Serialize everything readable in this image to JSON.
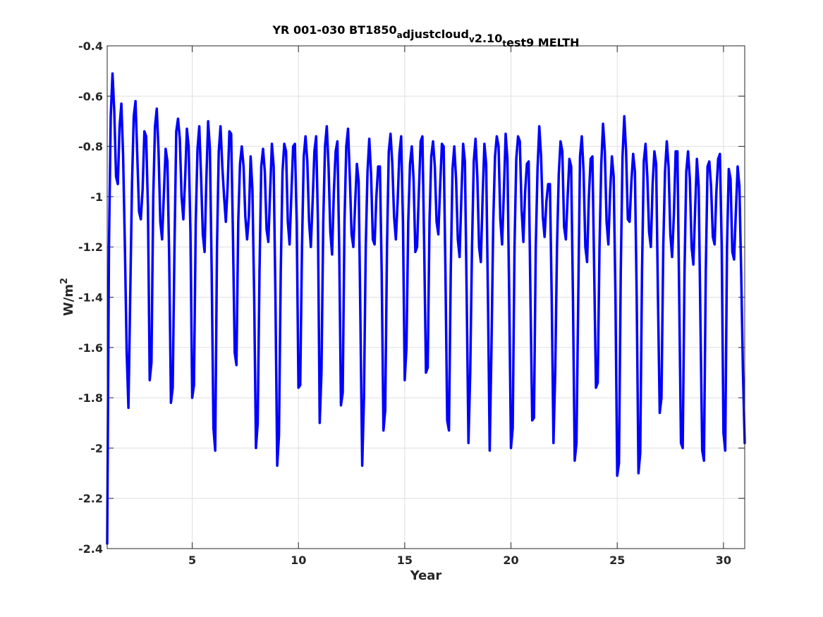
{
  "chart_data": {
    "type": "line",
    "title": {
      "parts": [
        {
          "text": "YR 001-030 BT1850",
          "sub": false
        },
        {
          "text": "a",
          "sub": true
        },
        {
          "text": "djustcloud",
          "sub": false
        },
        {
          "text": "v",
          "sub": true
        },
        {
          "text": "2.10",
          "sub": false
        },
        {
          "text": "t",
          "sub": true
        },
        {
          "text": "est9 MELTH",
          "sub": false
        }
      ]
    },
    "xlabel": "Year",
    "ylabel": {
      "base": "W/m",
      "sup": "2"
    },
    "xlim": [
      1,
      31
    ],
    "ylim": [
      -2.4,
      -0.4
    ],
    "xticks": [
      5,
      10,
      15,
      20,
      25,
      30
    ],
    "yticks": [
      -2.4,
      -2.2,
      -2,
      -1.8,
      -1.6,
      -1.4,
      -1.2,
      -1,
      -0.8,
      -0.6,
      -0.4
    ],
    "ytick_labels": [
      "-2.4",
      "-2.2",
      "-2",
      "-1.8",
      "-1.6",
      "-1.4",
      "-1.2",
      "-1",
      "-0.8",
      "-0.6",
      "-0.4"
    ],
    "xtick_labels": [
      "5",
      "10",
      "15",
      "20",
      "25",
      "30"
    ],
    "grid": true,
    "color": "#0000ff",
    "series": [
      {
        "x": [
          1.0,
          1.083,
          1.167,
          1.25,
          1.333,
          1.417,
          1.5,
          1.583,
          1.667,
          1.75,
          1.833,
          1.917,
          2.0,
          2.083,
          2.167,
          2.25,
          2.333,
          2.417,
          2.5,
          2.583,
          2.667,
          2.75,
          2.833,
          2.917,
          3.0,
          3.083,
          3.167,
          3.25,
          3.333,
          3.417,
          3.5,
          3.583,
          3.667,
          3.75,
          3.833,
          3.917,
          4.0,
          4.083,
          4.167,
          4.25,
          4.333,
          4.417,
          4.5,
          4.583,
          4.667,
          4.75,
          4.833,
          4.917,
          5.0,
          5.083,
          5.167,
          5.25,
          5.333,
          5.417,
          5.5,
          5.583,
          5.667,
          5.75,
          5.833,
          5.917,
          6.0,
          6.083,
          6.167,
          6.25,
          6.333,
          6.417,
          6.5,
          6.583,
          6.667,
          6.75,
          6.833,
          6.917,
          7.0,
          7.083,
          7.167,
          7.25,
          7.333,
          7.417,
          7.5,
          7.583,
          7.667,
          7.75,
          7.833,
          7.917,
          8.0,
          8.083,
          8.167,
          8.25,
          8.333,
          8.417,
          8.5,
          8.583,
          8.667,
          8.75,
          8.833,
          8.917,
          9.0,
          9.083,
          9.167,
          9.25,
          9.333,
          9.417,
          9.5,
          9.583,
          9.667,
          9.75,
          9.833,
          9.917,
          10.0,
          10.083,
          10.167,
          10.25,
          10.333,
          10.417,
          10.5,
          10.583,
          10.667,
          10.75,
          10.833,
          10.917,
          11.0,
          11.083,
          11.167,
          11.25,
          11.333,
          11.417,
          11.5,
          11.583,
          11.667,
          11.75,
          11.833,
          11.917,
          12.0,
          12.083,
          12.167,
          12.25,
          12.333,
          12.417,
          12.5,
          12.583,
          12.667,
          12.75,
          12.833,
          12.917,
          13.0,
          13.083,
          13.167,
          13.25,
          13.333,
          13.417,
          13.5,
          13.583,
          13.667,
          13.75,
          13.833,
          13.917,
          14.0,
          14.083,
          14.167,
          14.25,
          14.333,
          14.417,
          14.5,
          14.583,
          14.667,
          14.75,
          14.833,
          14.917,
          15.0,
          15.083,
          15.167,
          15.25,
          15.333,
          15.417,
          15.5,
          15.583,
          15.667,
          15.75,
          15.833,
          15.917,
          16.0,
          16.083,
          16.167,
          16.25,
          16.333,
          16.417,
          16.5,
          16.583,
          16.667,
          16.75,
          16.833,
          16.917,
          17.0,
          17.083,
          17.167,
          17.25,
          17.333,
          17.417,
          17.5,
          17.583,
          17.667,
          17.75,
          17.833,
          17.917,
          18.0,
          18.083,
          18.167,
          18.25,
          18.333,
          18.417,
          18.5,
          18.583,
          18.667,
          18.75,
          18.833,
          18.917,
          19.0,
          19.083,
          19.167,
          19.25,
          19.333,
          19.417,
          19.5,
          19.583,
          19.667,
          19.75,
          19.833,
          19.917,
          20.0,
          20.083,
          20.167,
          20.25,
          20.333,
          20.417,
          20.5,
          20.583,
          20.667,
          20.75,
          20.833,
          20.917,
          21.0,
          21.083,
          21.167,
          21.25,
          21.333,
          21.417,
          21.5,
          21.583,
          21.667,
          21.75,
          21.833,
          21.917,
          22.0,
          22.083,
          22.167,
          22.25,
          22.333,
          22.417,
          22.5,
          22.583,
          22.667,
          22.75,
          22.833,
          22.917,
          23.0,
          23.083,
          23.167,
          23.25,
          23.333,
          23.417,
          23.5,
          23.583,
          23.667,
          23.75,
          23.833,
          23.917,
          24.0,
          24.083,
          24.167,
          24.25,
          24.333,
          24.417,
          24.5,
          24.583,
          24.667,
          24.75,
          24.833,
          24.917,
          25.0,
          25.083,
          25.167,
          25.25,
          25.333,
          25.417,
          25.5,
          25.583,
          25.667,
          25.75,
          25.833,
          25.917,
          26.0,
          26.083,
          26.167,
          26.25,
          26.333,
          26.417,
          26.5,
          26.583,
          26.667,
          26.75,
          26.833,
          26.917,
          27.0,
          27.083,
          27.167,
          27.25,
          27.333,
          27.417,
          27.5,
          27.583,
          27.667,
          27.75,
          27.833,
          27.917,
          28.0,
          28.083,
          28.167,
          28.25,
          28.333,
          28.417,
          28.5,
          28.583,
          28.667,
          28.75,
          28.833,
          28.917,
          29.0,
          29.083,
          29.167,
          29.25,
          29.333,
          29.417,
          29.5,
          29.583,
          29.667,
          29.75,
          29.833,
          29.917,
          30.0,
          30.083,
          30.167,
          30.25,
          30.333,
          30.417,
          30.5,
          30.583,
          30.667,
          30.75,
          30.833,
          30.917,
          31.0
        ],
        "y": [
          -2.38,
          -1.2,
          -0.68,
          -0.51,
          -0.66,
          -0.92,
          -0.95,
          -0.72,
          -0.63,
          -0.84,
          -1.2,
          -1.62,
          -1.84,
          -1.4,
          -0.95,
          -0.68,
          -0.62,
          -0.84,
          -1.06,
          -1.09,
          -0.97,
          -0.74,
          -0.76,
          -1.04,
          -1.73,
          -1.66,
          -1.0,
          -0.72,
          -0.65,
          -0.82,
          -1.1,
          -1.17,
          -0.99,
          -0.81,
          -0.86,
          -1.24,
          -1.82,
          -1.76,
          -1.2,
          -0.74,
          -0.69,
          -0.77,
          -1.0,
          -1.09,
          -0.93,
          -0.73,
          -0.8,
          -1.14,
          -1.8,
          -1.75,
          -1.1,
          -0.81,
          -0.72,
          -0.92,
          -1.15,
          -1.22,
          -0.93,
          -0.7,
          -0.81,
          -1.3,
          -1.92,
          -2.01,
          -1.2,
          -0.82,
          -0.72,
          -0.88,
          -1.0,
          -1.1,
          -0.96,
          -0.74,
          -0.75,
          -1.15,
          -1.62,
          -1.67,
          -1.1,
          -0.87,
          -0.8,
          -0.88,
          -1.08,
          -1.17,
          -1.08,
          -0.84,
          -0.97,
          -1.4,
          -2.0,
          -1.9,
          -1.3,
          -0.88,
          -0.81,
          -0.9,
          -1.13,
          -1.18,
          -0.98,
          -0.79,
          -0.88,
          -1.4,
          -2.07,
          -1.95,
          -1.3,
          -0.9,
          -0.79,
          -0.82,
          -1.1,
          -1.19,
          -0.99,
          -0.8,
          -0.79,
          -1.1,
          -1.76,
          -1.75,
          -1.2,
          -0.84,
          -0.76,
          -0.86,
          -1.1,
          -1.2,
          -1.02,
          -0.82,
          -0.76,
          -1.1,
          -1.9,
          -1.7,
          -1.1,
          -0.8,
          -0.72,
          -0.88,
          -1.14,
          -1.23,
          -0.98,
          -0.82,
          -0.78,
          -1.2,
          -1.83,
          -1.78,
          -1.1,
          -0.8,
          -0.73,
          -0.92,
          -1.15,
          -1.2,
          -1.03,
          -0.87,
          -0.94,
          -1.5,
          -2.07,
          -1.8,
          -1.2,
          -0.9,
          -0.77,
          -0.91,
          -1.17,
          -1.19,
          -1.0,
          -0.88,
          -0.88,
          -1.3,
          -1.93,
          -1.85,
          -1.2,
          -0.82,
          -0.75,
          -0.87,
          -1.08,
          -1.17,
          -1.02,
          -0.83,
          -0.76,
          -1.1,
          -1.73,
          -1.6,
          -1.1,
          -0.87,
          -0.8,
          -0.93,
          -1.22,
          -1.2,
          -0.98,
          -0.78,
          -0.76,
          -1.2,
          -1.7,
          -1.68,
          -1.1,
          -0.84,
          -0.78,
          -0.88,
          -1.1,
          -1.15,
          -0.96,
          -0.79,
          -0.8,
          -1.3,
          -1.89,
          -1.93,
          -1.3,
          -0.89,
          -0.8,
          -0.93,
          -1.17,
          -1.24,
          -1.0,
          -0.79,
          -0.86,
          -1.4,
          -1.98,
          -1.7,
          -1.2,
          -0.86,
          -0.77,
          -0.92,
          -1.2,
          -1.26,
          -1.0,
          -0.79,
          -0.87,
          -1.4,
          -2.01,
          -1.6,
          -1.1,
          -0.84,
          -0.76,
          -0.8,
          -1.09,
          -1.19,
          -0.98,
          -0.75,
          -0.85,
          -1.4,
          -2.0,
          -1.92,
          -1.2,
          -0.85,
          -0.76,
          -0.78,
          -1.05,
          -1.18,
          -0.98,
          -0.87,
          -0.86,
          -1.4,
          -1.89,
          -1.88,
          -1.2,
          -0.89,
          -0.72,
          -0.84,
          -1.08,
          -1.16,
          -1.02,
          -0.95,
          -0.95,
          -1.4,
          -1.98,
          -1.7,
          -1.2,
          -0.91,
          -0.78,
          -0.82,
          -1.12,
          -1.17,
          -1.0,
          -0.85,
          -0.88,
          -1.4,
          -2.05,
          -1.98,
          -1.4,
          -0.84,
          -0.76,
          -0.9,
          -1.2,
          -1.26,
          -1.0,
          -0.85,
          -0.84,
          -1.3,
          -1.76,
          -1.74,
          -1.2,
          -0.87,
          -0.71,
          -0.82,
          -1.1,
          -1.19,
          -0.98,
          -0.84,
          -0.92,
          -1.4,
          -2.11,
          -2.06,
          -1.3,
          -0.84,
          -0.68,
          -0.82,
          -1.09,
          -1.1,
          -0.94,
          -0.83,
          -0.9,
          -1.4,
          -2.1,
          -2.02,
          -1.3,
          -0.86,
          -0.79,
          -0.92,
          -1.14,
          -1.2,
          -0.95,
          -0.82,
          -0.87,
          -1.4,
          -1.86,
          -1.8,
          -1.2,
          -0.9,
          -0.78,
          -0.88,
          -1.15,
          -1.24,
          -1.07,
          -0.82,
          -0.82,
          -1.4,
          -1.98,
          -2.0,
          -1.3,
          -0.9,
          -0.82,
          -0.93,
          -1.2,
          -1.27,
          -1.05,
          -0.85,
          -0.96,
          -1.5,
          -2.01,
          -2.05,
          -1.3,
          -0.88,
          -0.86,
          -0.96,
          -1.16,
          -1.19,
          -0.98,
          -0.85,
          -0.83,
          -1.2,
          -1.94,
          -2.01,
          -1.2,
          -0.89,
          -0.93,
          -1.22,
          -1.25,
          -1.06,
          -0.88,
          -0.96,
          -1.3,
          -1.7,
          -1.98
        ]
      }
    ]
  }
}
